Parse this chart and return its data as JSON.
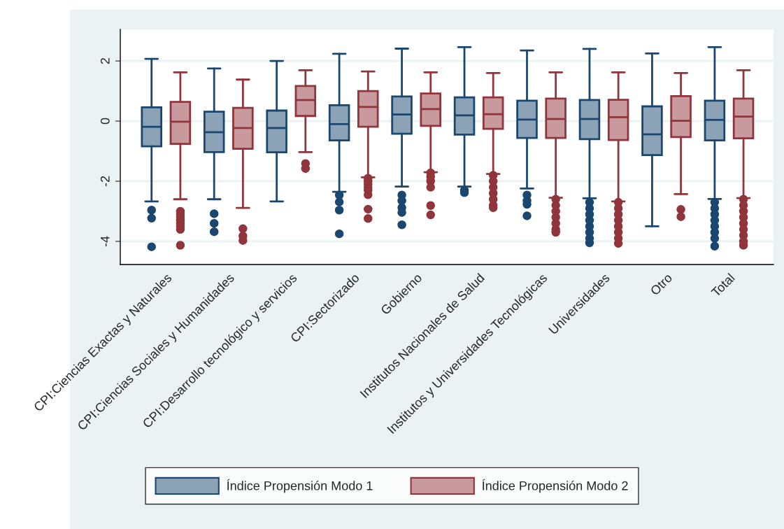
{
  "chart_data": {
    "type": "box",
    "categories": [
      "CPI:Ciencias Exactas y Naturales",
      "CPI:Ciencias Sociales y Humanidades",
      "CPI:Desarrollo tecnológico y servicios",
      "CPI:Sectorizado",
      "Gobierno",
      "Institutos Nacionales de Salud",
      "Institutos y Universidades Tecnológicas",
      "Universidades",
      "Otro",
      "Total"
    ],
    "series": [
      {
        "name": "Índice Propensión Modo 1",
        "color": "#1a476f",
        "boxes": [
          {
            "low": -2.67,
            "q1": -0.84,
            "median": -0.19,
            "q3": 0.46,
            "high": 2.07,
            "outliers": [
              -2.96,
              -3.23,
              -4.18
            ]
          },
          {
            "low": -2.6,
            "q1": -1.03,
            "median": -0.37,
            "q3": 0.31,
            "high": 1.75,
            "outliers": [
              -3.08,
              -3.4,
              -3.68
            ]
          },
          {
            "low": -2.67,
            "q1": -1.04,
            "median": -0.23,
            "q3": 0.35,
            "high": 2.0
          },
          {
            "low": -2.35,
            "q1": -0.64,
            "median": -0.1,
            "q3": 0.53,
            "high": 2.24,
            "outliers": [
              -2.46,
              -2.69,
              -2.96,
              -3.75
            ]
          },
          {
            "low": -2.18,
            "q1": -0.42,
            "median": 0.22,
            "q3": 0.82,
            "high": 2.41,
            "outliers": [
              -2.46,
              -2.65,
              -2.88,
              -3.04,
              -3.45
            ]
          },
          {
            "low": -2.18,
            "q1": -0.45,
            "median": 0.19,
            "q3": 0.79,
            "high": 2.46,
            "outliers": [
              -2.3,
              -2.38
            ]
          },
          {
            "low": -2.24,
            "q1": -0.56,
            "median": 0.05,
            "q3": 0.68,
            "high": 2.35,
            "outliers": [
              -2.46,
              -2.65,
              -2.77,
              -3.15
            ]
          },
          {
            "low": -2.57,
            "q1": -0.6,
            "median": 0.07,
            "q3": 0.7,
            "high": 2.4,
            "outliers": [
              -2.7,
              -2.9,
              -3.1,
              -3.3,
              -3.5,
              -3.7,
              -3.9,
              -4.05
            ]
          },
          {
            "low": -3.5,
            "q1": -1.13,
            "median": -0.44,
            "q3": 0.49,
            "high": 2.25
          },
          {
            "low": -2.59,
            "q1": -0.64,
            "median": 0.04,
            "q3": 0.68,
            "high": 2.46,
            "outliers": [
              -2.7,
              -2.9,
              -3.1,
              -3.3,
              -3.5,
              -3.7,
              -3.9,
              -4.16
            ]
          }
        ]
      },
      {
        "name": "Índice Propensión Modo 2",
        "color": "#90353b",
        "boxes": [
          {
            "low": -2.6,
            "q1": -0.76,
            "median": -0.02,
            "q3": 0.64,
            "high": 1.62,
            "outliers": [
              -3.0,
              -3.1,
              -3.2,
              -3.3,
              -3.4,
              -3.5,
              -3.6,
              -4.13
            ]
          },
          {
            "low": -2.89,
            "q1": -0.92,
            "median": -0.23,
            "q3": 0.44,
            "high": 1.38,
            "outliers": [
              -3.58,
              -3.82,
              -3.97
            ]
          },
          {
            "low": -1.03,
            "q1": 0.17,
            "median": 0.7,
            "q3": 1.17,
            "high": 1.69,
            "outliers": [
              -1.41,
              -1.58
            ]
          },
          {
            "low": -1.87,
            "q1": -0.19,
            "median": 0.47,
            "q3": 1.0,
            "high": 1.65,
            "outliers": [
              -1.9,
              -2.0,
              -2.1,
              -2.2,
              -2.3,
              -2.45,
              -2.93,
              -3.24
            ]
          },
          {
            "low": -1.7,
            "q1": -0.16,
            "median": 0.4,
            "q3": 0.92,
            "high": 1.62,
            "outliers": [
              -1.72,
              -1.85,
              -2.0,
              -2.2,
              -2.81,
              -3.12
            ]
          },
          {
            "low": -1.76,
            "q1": -0.26,
            "median": 0.23,
            "q3": 0.79,
            "high": 1.6,
            "outliers": [
              -1.8,
              -2.0,
              -2.2,
              -2.4,
              -2.6,
              -2.8,
              -2.88
            ]
          },
          {
            "low": -2.55,
            "q1": -0.56,
            "median": 0.07,
            "q3": 0.75,
            "high": 1.62,
            "outliers": [
              -2.6,
              -2.8,
              -3.0,
              -3.2,
              -3.4,
              -3.6,
              -3.7
            ]
          },
          {
            "low": -2.67,
            "q1": -0.63,
            "median": 0.13,
            "q3": 0.71,
            "high": 1.62,
            "outliers": [
              -2.7,
              -2.9,
              -3.1,
              -3.3,
              -3.5,
              -3.7,
              -3.9,
              -4.07
            ]
          },
          {
            "low": -2.43,
            "q1": -0.53,
            "median": 0.01,
            "q3": 0.83,
            "high": 1.6,
            "outliers": [
              -2.94,
              -3.18
            ]
          },
          {
            "low": -2.56,
            "q1": -0.57,
            "median": 0.15,
            "q3": 0.75,
            "high": 1.69,
            "outliers": [
              -2.6,
              -2.8,
              -3.0,
              -3.2,
              -3.4,
              -3.6,
              -3.8,
              -4.0,
              -4.13
            ]
          }
        ]
      }
    ],
    "ylim": [
      -4.77,
      3.05
    ],
    "yticks": [
      -4,
      -2,
      0,
      2
    ],
    "grid": "y",
    "legend": "bottom"
  }
}
